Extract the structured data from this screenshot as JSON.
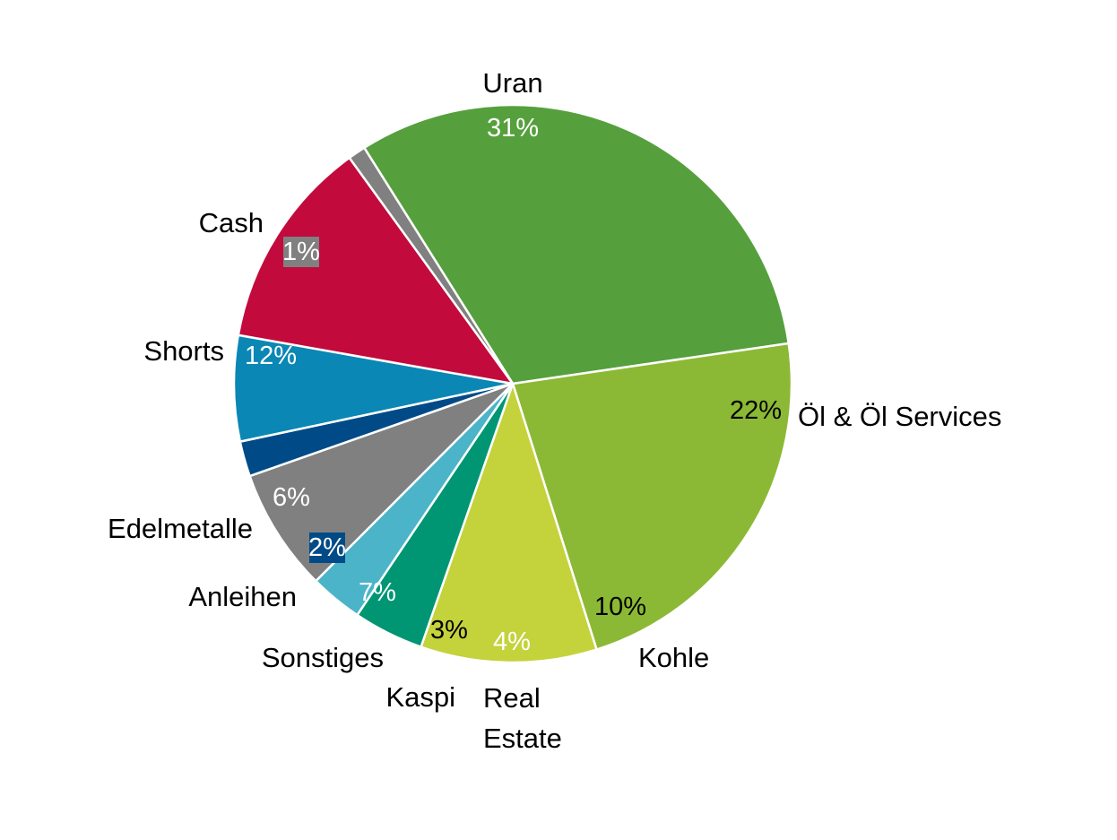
{
  "chart_data": {
    "type": "pie",
    "slices": [
      {
        "name": "Uran",
        "label_lines": [
          "Uran"
        ],
        "value": 31,
        "value_label": "31%",
        "color": "#55a03c",
        "text_color": "#ffffff",
        "boxed": false
      },
      {
        "name": "Öl & Öl Services",
        "label_lines": [
          "Öl & Öl Services"
        ],
        "value": 22,
        "value_label": "22%",
        "color": "#8cb935",
        "text_color": "#000000",
        "boxed": false
      },
      {
        "name": "Kohle",
        "label_lines": [
          "Kohle"
        ],
        "value": 10,
        "value_label": "10%",
        "color": "#c4d23c",
        "text_color": "#000000",
        "boxed": false
      },
      {
        "name": "Real Estate",
        "label_lines": [
          "Real",
          "Estate"
        ],
        "value": 4,
        "value_label": "4%",
        "color": "#009673",
        "text_color": "#ffffff",
        "boxed": false
      },
      {
        "name": "Kaspi",
        "label_lines": [
          "Kaspi"
        ],
        "value": 3,
        "value_label": "3%",
        "color": "#4bb4c8",
        "text_color": "#000000",
        "boxed": false
      },
      {
        "name": "Sonstiges",
        "label_lines": [
          "Sonstiges"
        ],
        "value": 7,
        "value_label": "7%",
        "color": "#808080",
        "text_color": "#ffffff",
        "boxed": false
      },
      {
        "name": "Anleihen",
        "label_lines": [
          "Anleihen"
        ],
        "value": 2,
        "value_label": "2%",
        "color": "#004b87",
        "text_color": "#ffffff",
        "boxed": true
      },
      {
        "name": "Edelmetalle",
        "label_lines": [
          "Edelmetalle"
        ],
        "value": 6,
        "value_label": "6%",
        "color": "#0a87b4",
        "text_color": "#ffffff",
        "boxed": false
      },
      {
        "name": "Shorts",
        "label_lines": [
          "Shorts"
        ],
        "value": 12,
        "value_label": "12%",
        "color": "#c30a3c",
        "text_color": "#ffffff",
        "boxed": false
      },
      {
        "name": "Cash",
        "label_lines": [
          "Cash"
        ],
        "value": 1,
        "value_label": "1%",
        "color": "#808080",
        "text_color": "#ffffff",
        "boxed": true
      }
    ]
  }
}
